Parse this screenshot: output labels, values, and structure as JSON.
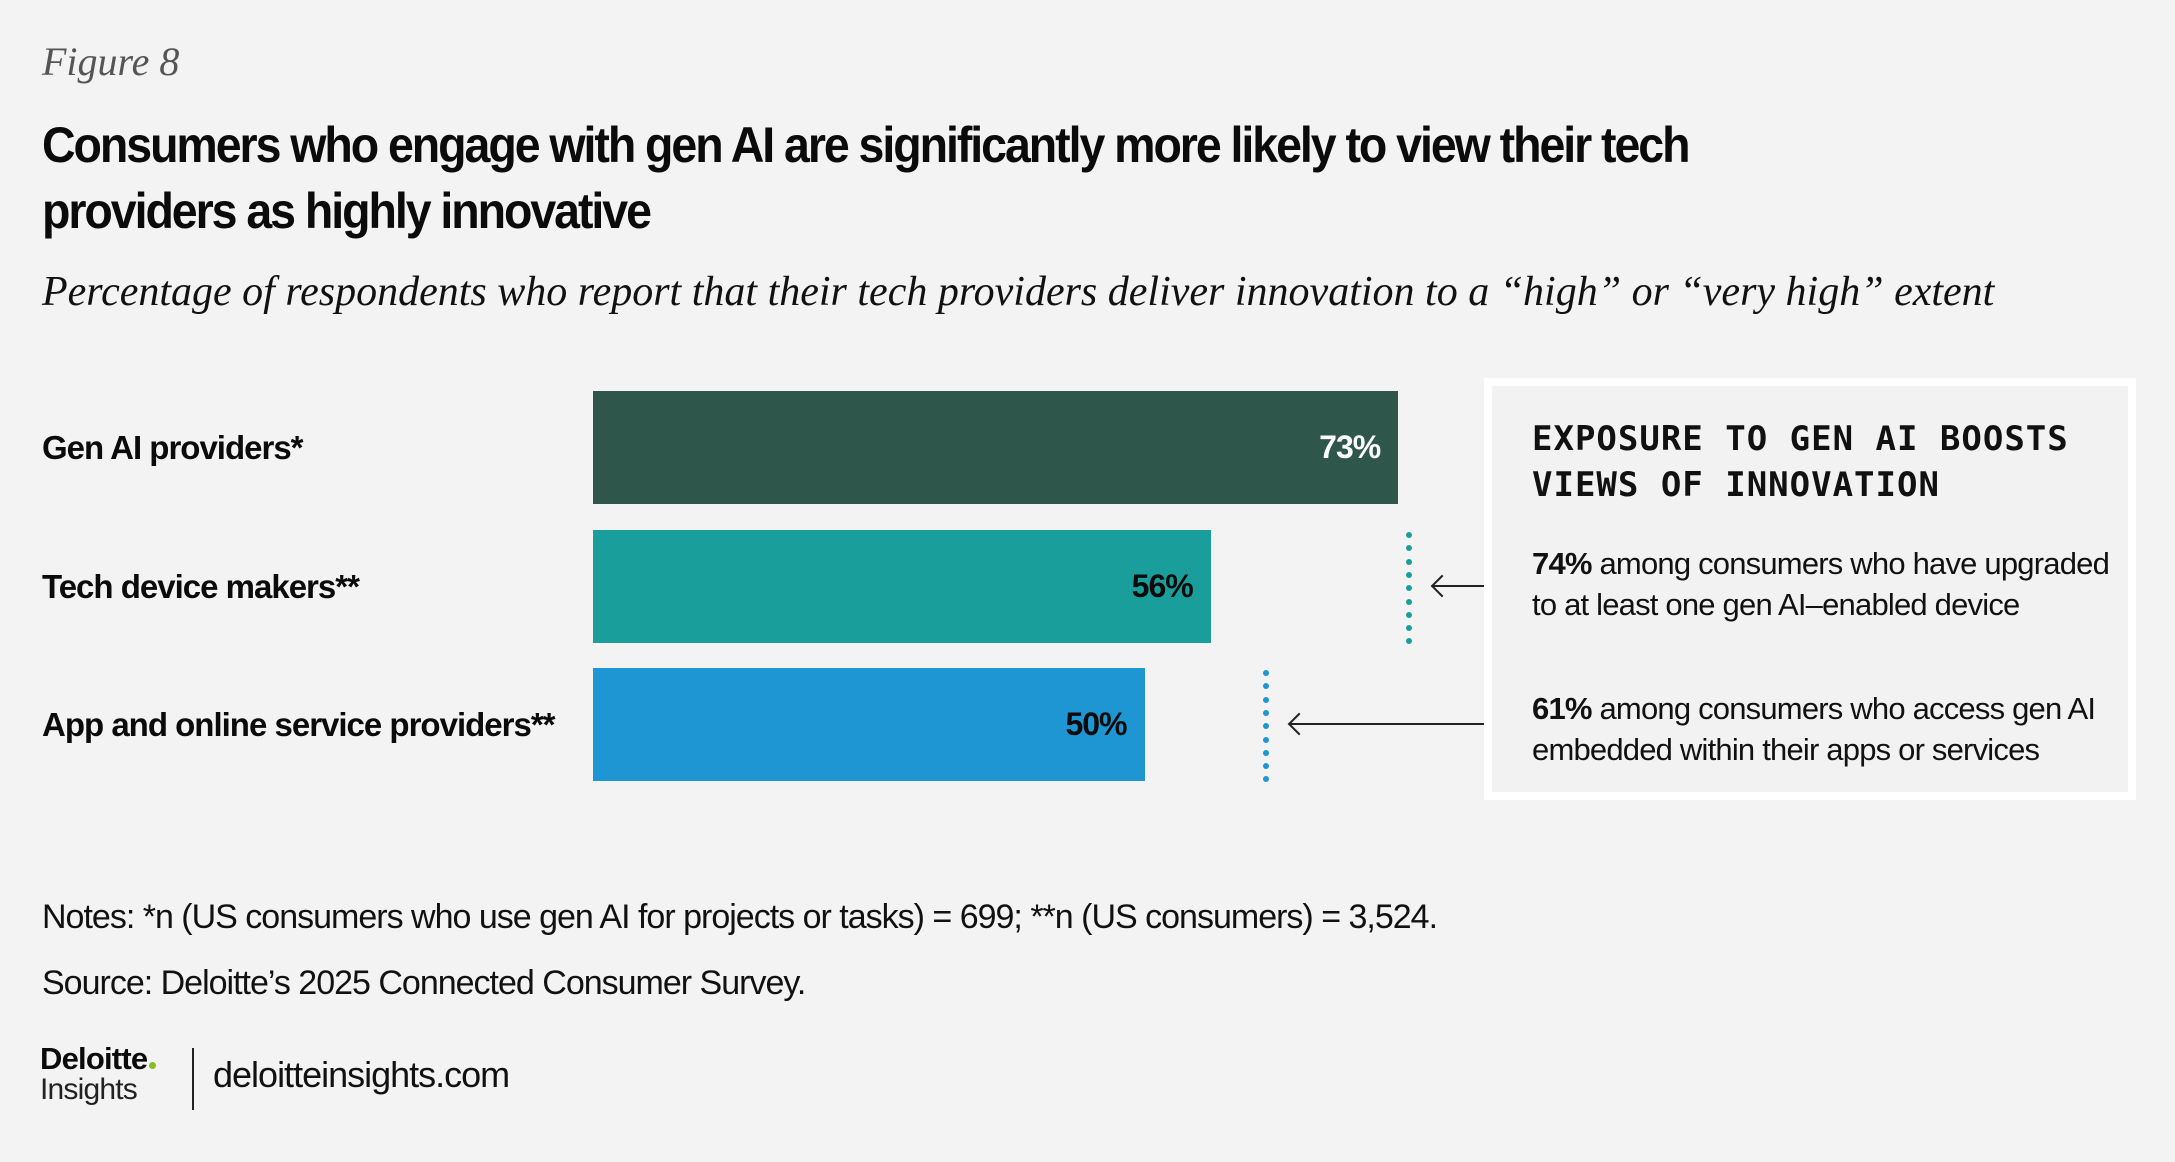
{
  "figure_label": "Figure 8",
  "title": "Consumers who engage with gen AI are significantly more likely to view their tech providers as highly innovative",
  "subtitle": "Percentage of respondents who report that their tech providers deliver innovation to a “high” or “very high” extent",
  "chart_data": {
    "type": "bar",
    "orientation": "horizontal",
    "title": "Consumers who engage with gen AI are significantly more likely to view their tech providers as highly innovative",
    "subtitle": "Percentage of respondents who report that their tech providers deliver innovation to a “high” or “very high” extent",
    "xlabel": "",
    "ylabel": "",
    "xlim": [
      0,
      100
    ],
    "grid": false,
    "categories": [
      "Gen AI providers*",
      "Tech device makers**",
      "App and online service providers**"
    ],
    "values": [
      73,
      56,
      50
    ],
    "value_labels": [
      "73%",
      "56%",
      "50%"
    ],
    "colors": [
      "#2e564b",
      "#1a9e9c",
      "#1e96d3"
    ],
    "label_colors": [
      "#ffffff",
      "#0b0b0b",
      "#0b0b0b"
    ],
    "annotations": [
      {
        "category": "Tech device makers**",
        "value": 74,
        "color": "#1a9e9c",
        "bold": "74%",
        "text": "among consumers who have upgraded to at least one gen AI–enabled device"
      },
      {
        "category": "App and online service providers**",
        "value": 61,
        "color": "#1e96d3",
        "bold": "61%",
        "text": "among consumers who access gen AI embedded within their apps or services"
      }
    ]
  },
  "callout": {
    "title": "Exposure to gen AI boosts views of innovation"
  },
  "notes": "Notes: *n (US consumers who use gen AI for projects or tasks) = 699; **n (US consumers) = 3,524.",
  "source": "Source: Deloitte’s 2025 Connected Consumer Survey.",
  "footer": {
    "logo_brand": "Deloitte",
    "logo_sub": "Insights",
    "logo_dot_color": "#86bc25",
    "site": "deloitteinsights.com"
  }
}
